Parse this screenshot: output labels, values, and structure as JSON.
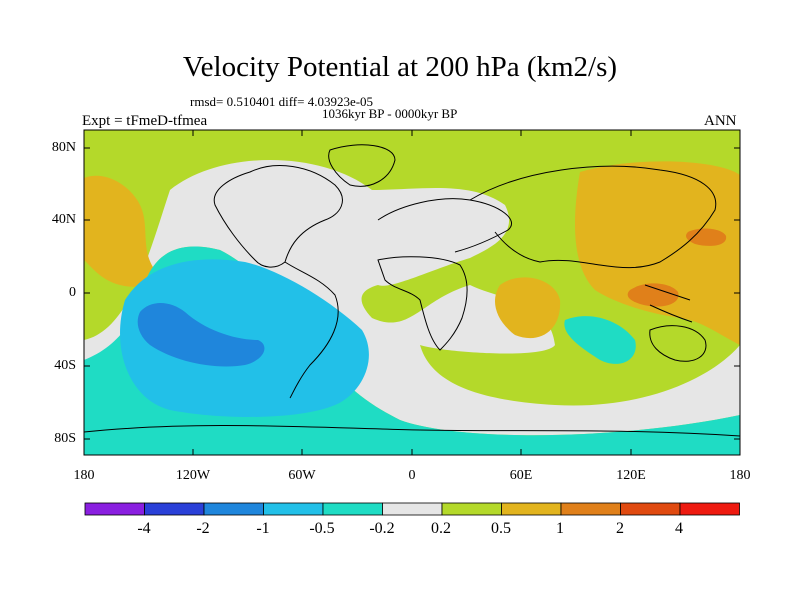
{
  "title": "Velocity Potential at 200 hPa (km2/s)",
  "stats": "rmsd= 0.510401 diff= 4.03923e-05",
  "period": "1036kyr BP - 0000kyr BP",
  "left_label": "Expt = tFmeD-tfmea",
  "right_label": "ANN",
  "y_ticks": [
    "80N",
    "40N",
    "0",
    "40S",
    "80S"
  ],
  "x_ticks": [
    "180",
    "120W",
    "60W",
    "0",
    "60E",
    "120E",
    "180"
  ],
  "colorbar": {
    "levels": [
      "-4",
      "-2",
      "-1",
      "-0.5",
      "-0.2",
      "0.2",
      "0.5",
      "1",
      "2",
      "4"
    ],
    "colors": [
      "#8a1fe0",
      "#2a40d8",
      "#1f86dc",
      "#22c0e8",
      "#1fdcc4",
      "#e6e6e6",
      "#b4d92a",
      "#e2b41e",
      "#e0801a",
      "#e04a10",
      "#ee1a10"
    ]
  },
  "field_colors": {
    "ocean_land_bg": "#b4d92a",
    "neutral": "#e6e6e6",
    "positive_05": "#e2b41e",
    "positive_1": "#e0801a",
    "negative_05": "#1fdcc4",
    "negative_1": "#22c0e8",
    "negative_2": "#1f86dc"
  }
}
